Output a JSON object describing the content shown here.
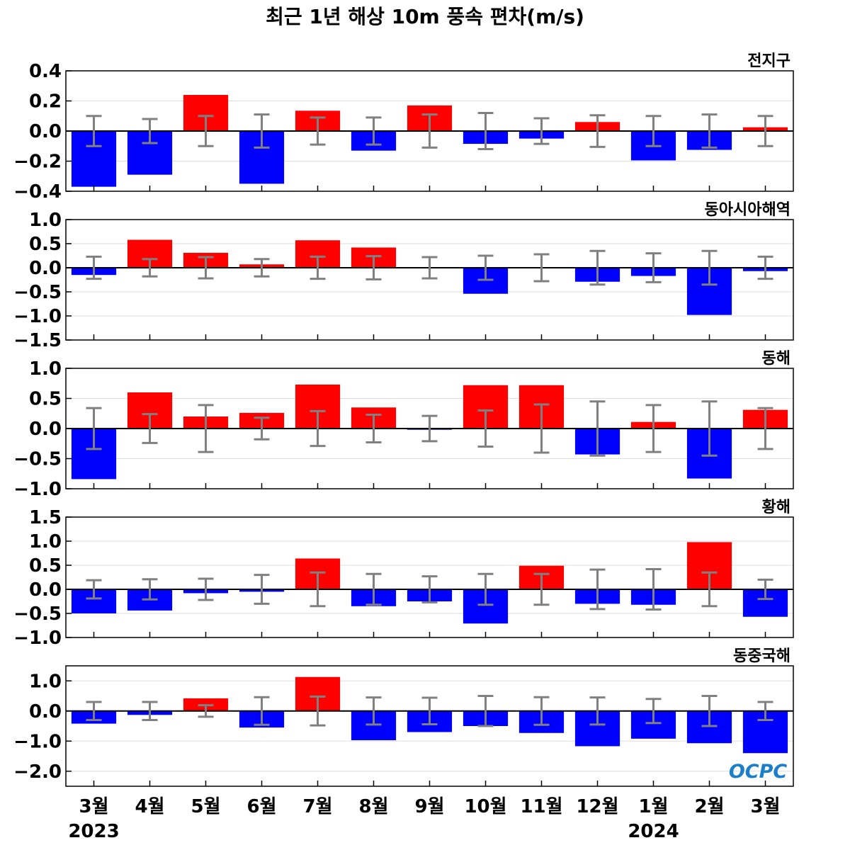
{
  "chart_data": {
    "type": "bar",
    "title": "최근 1년 해상 10m 풍속 편차(m/s)",
    "categories": [
      "3월",
      "4월",
      "5월",
      "6월",
      "7월",
      "8월",
      "9월",
      "10월",
      "11월",
      "12월",
      "1월",
      "2월",
      "3월"
    ],
    "year_labels": [
      "2023",
      "2024"
    ],
    "logo_text": "OCPC",
    "colors": {
      "positive": "#ff0000",
      "negative": "#0000ff",
      "error_bar": "#808080",
      "zero_line": "#000000"
    },
    "panels": [
      {
        "name": "전지구",
        "ylim": [
          -0.4,
          0.4
        ],
        "yticks": [
          0.4,
          0.2,
          0.0,
          -0.2,
          -0.4
        ],
        "ytick_labels": [
          "0.4",
          "0.2",
          "0.0",
          "−0.2",
          "−0.4"
        ],
        "values": [
          -0.37,
          -0.29,
          0.24,
          -0.35,
          0.135,
          -0.13,
          0.17,
          -0.085,
          -0.05,
          0.06,
          -0.195,
          -0.125,
          0.025
        ],
        "errors": [
          0.1,
          0.08,
          0.1,
          0.11,
          0.09,
          0.09,
          0.11,
          0.12,
          0.085,
          0.105,
          0.1,
          0.11,
          0.1
        ]
      },
      {
        "name": "동아시아해역",
        "ylim": [
          -1.5,
          1.0
        ],
        "yticks": [
          1.0,
          0.5,
          0.0,
          -0.5,
          -1.0,
          -1.5
        ],
        "ytick_labels": [
          "1.0",
          "0.5",
          "0.0",
          "−0.5",
          "−1.0",
          "−1.5"
        ],
        "values": [
          -0.15,
          0.58,
          0.31,
          0.07,
          0.57,
          0.42,
          0.0,
          -0.54,
          0.01,
          -0.29,
          -0.17,
          -0.98,
          -0.07
        ],
        "errors": [
          0.23,
          0.18,
          0.22,
          0.18,
          0.23,
          0.24,
          0.22,
          0.25,
          0.28,
          0.35,
          0.3,
          0.35,
          0.23
        ]
      },
      {
        "name": "동해",
        "ylim": [
          -1.0,
          1.0
        ],
        "yticks": [
          1.0,
          0.5,
          0.0,
          -0.5,
          -1.0
        ],
        "ytick_labels": [
          "1.0",
          "0.5",
          "0.0",
          "−0.5",
          "−1.0"
        ],
        "values": [
          -0.84,
          0.6,
          0.2,
          0.26,
          0.73,
          0.35,
          -0.02,
          0.72,
          0.72,
          -0.43,
          0.11,
          -0.83,
          0.31
        ],
        "errors": [
          0.34,
          0.24,
          0.39,
          0.18,
          0.29,
          0.23,
          0.21,
          0.3,
          0.4,
          0.45,
          0.39,
          0.45,
          0.34
        ]
      },
      {
        "name": "황해",
        "ylim": [
          -1.0,
          1.5
        ],
        "yticks": [
          1.5,
          1.0,
          0.5,
          0.0,
          -0.5,
          -1.0
        ],
        "ytick_labels": [
          "1.5",
          "1.0",
          "0.5",
          "0.0",
          "−0.5",
          "−1.0"
        ],
        "values": [
          -0.5,
          -0.44,
          -0.08,
          -0.05,
          0.64,
          -0.35,
          -0.25,
          -0.71,
          0.49,
          -0.3,
          -0.32,
          0.98,
          -0.57
        ],
        "errors": [
          0.19,
          0.21,
          0.22,
          0.3,
          0.35,
          0.32,
          0.27,
          0.32,
          0.32,
          0.41,
          0.42,
          0.35,
          0.2
        ]
      },
      {
        "name": "동중국해",
        "ylim": [
          -2.5,
          1.5
        ],
        "yticks": [
          1.0,
          0.0,
          -1.0,
          -2.0
        ],
        "ytick_labels": [
          "1.0",
          "0.0",
          "−1.0",
          "−2.0"
        ],
        "values": [
          -0.42,
          -0.13,
          0.42,
          -0.55,
          1.13,
          -0.97,
          -0.7,
          -0.5,
          -0.73,
          -1.17,
          -0.92,
          -1.07,
          -1.4
        ],
        "errors": [
          0.3,
          0.3,
          0.19,
          0.46,
          0.48,
          0.45,
          0.44,
          0.5,
          0.46,
          0.45,
          0.4,
          0.5,
          0.3
        ]
      }
    ]
  }
}
